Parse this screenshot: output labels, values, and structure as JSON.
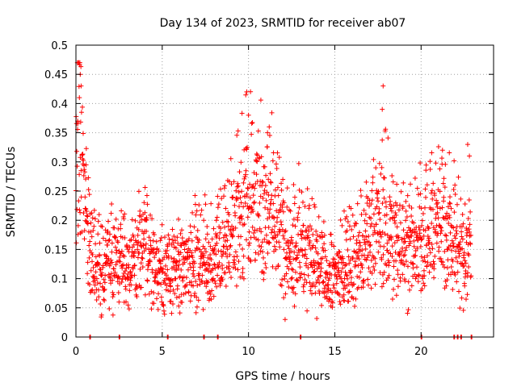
{
  "chart_data": {
    "type": "scatter",
    "title": "Day 134 of 2023, SRMTID for receiver ab07",
    "xlabel": "GPS time / hours",
    "ylabel": "SRMTID / TECUs",
    "xlim": [
      0,
      24.2
    ],
    "ylim": [
      0,
      0.5
    ],
    "x_ticks": [
      0,
      5,
      10,
      15,
      20
    ],
    "x_tick_labels": [
      "0",
      "5",
      "10",
      "15",
      "20"
    ],
    "y_ticks": [
      0,
      0.05,
      0.1,
      0.15,
      0.2,
      0.25,
      0.3,
      0.35,
      0.4,
      0.45,
      0.5
    ],
    "y_tick_labels": [
      "0",
      "0.05",
      "0.1",
      "0.15",
      "0.2",
      "0.25",
      "0.3",
      "0.35",
      "0.4",
      "0.45",
      "0.5"
    ],
    "grid": true,
    "marker": "+",
    "series_color": "#ff0000",
    "series": [
      {
        "name": "SRMTID",
        "trend": [
          [
            0.0,
            0.3
          ],
          [
            0.1,
            0.36
          ],
          [
            0.2,
            0.4
          ],
          [
            0.3,
            0.33
          ],
          [
            0.4,
            0.26
          ],
          [
            0.5,
            0.22
          ],
          [
            0.7,
            0.18
          ],
          [
            1.0,
            0.15
          ],
          [
            1.2,
            0.12
          ],
          [
            1.5,
            0.12
          ],
          [
            2.0,
            0.13
          ],
          [
            2.5,
            0.14
          ],
          [
            3.0,
            0.12
          ],
          [
            3.5,
            0.13
          ],
          [
            4.0,
            0.16
          ],
          [
            4.5,
            0.12
          ],
          [
            5.0,
            0.11
          ],
          [
            5.5,
            0.11
          ],
          [
            6.0,
            0.12
          ],
          [
            6.5,
            0.13
          ],
          [
            7.0,
            0.14
          ],
          [
            7.5,
            0.14
          ],
          [
            8.0,
            0.13
          ],
          [
            8.5,
            0.15
          ],
          [
            9.0,
            0.2
          ],
          [
            9.5,
            0.22
          ],
          [
            10.0,
            0.24
          ],
          [
            10.5,
            0.22
          ],
          [
            11.0,
            0.25
          ],
          [
            11.5,
            0.21
          ],
          [
            12.0,
            0.18
          ],
          [
            12.5,
            0.15
          ],
          [
            13.0,
            0.17
          ],
          [
            13.5,
            0.14
          ],
          [
            14.0,
            0.12
          ],
          [
            14.5,
            0.11
          ],
          [
            15.0,
            0.11
          ],
          [
            15.5,
            0.12
          ],
          [
            16.0,
            0.13
          ],
          [
            16.5,
            0.14
          ],
          [
            17.0,
            0.16
          ],
          [
            17.5,
            0.2
          ],
          [
            18.0,
            0.2
          ],
          [
            18.5,
            0.17
          ],
          [
            19.0,
            0.16
          ],
          [
            19.5,
            0.15
          ],
          [
            20.0,
            0.17
          ],
          [
            20.5,
            0.18
          ],
          [
            21.0,
            0.22
          ],
          [
            21.5,
            0.19
          ],
          [
            21.8,
            0.18
          ],
          [
            22.5,
            0.13
          ],
          [
            22.8,
            0.17
          ]
        ],
        "spikes": [
          [
            0.2,
            0.41
          ],
          [
            0.25,
            0.45
          ],
          [
            0.3,
            0.43
          ],
          [
            0.1,
            0.37
          ],
          [
            9.9,
            0.42
          ],
          [
            10.0,
            0.38
          ],
          [
            11.1,
            0.35
          ],
          [
            11.2,
            0.36
          ],
          [
            17.8,
            0.43
          ],
          [
            17.75,
            0.39
          ],
          [
            22.7,
            0.33
          ],
          [
            22.8,
            0.31
          ]
        ],
        "zeros": [
          0.8,
          2.5,
          5.3,
          7.4,
          8.2,
          13.0,
          20.0,
          21.9,
          22.1,
          22.3,
          22.9
        ]
      }
    ]
  }
}
